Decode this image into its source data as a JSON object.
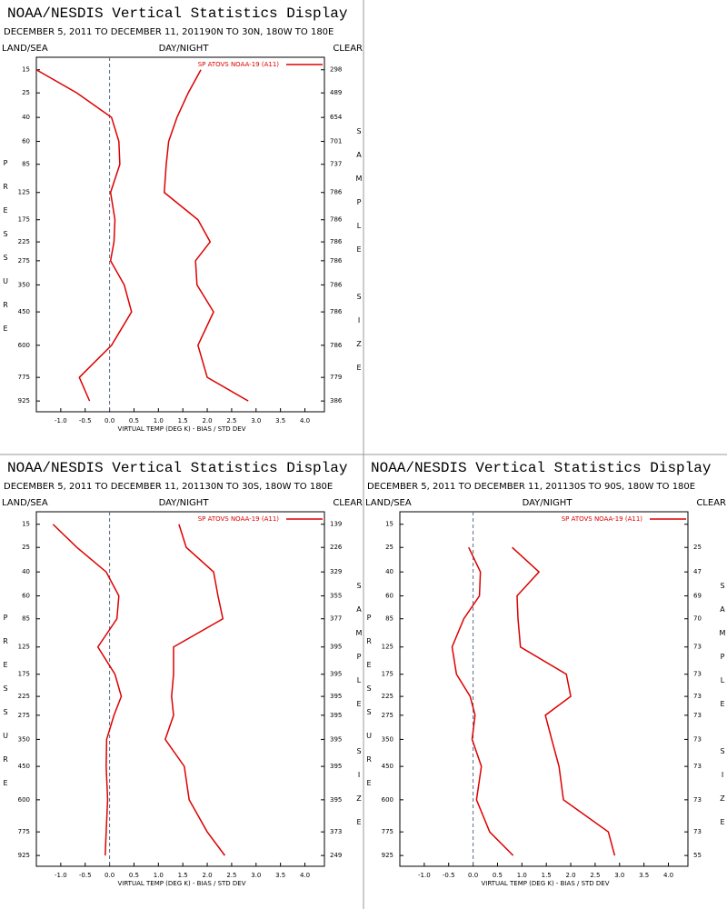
{
  "chart_data": [
    {
      "type": "line",
      "title": "NOAA/NESDIS Vertical Statistics Display",
      "subtitle": "DECEMBER 5, 2011 TO DECEMBER 11, 201190N TO 30N, 180W TO 180E",
      "left_label": "LAND/SEA",
      "center_label": "DAY/NIGHT",
      "right_label": "CLEAR",
      "y_label": "PRESSURE",
      "y2_label": "SAMPLE SIZE",
      "x_label": "VIRTUAL TEMP (DEG K) - BIAS / STD DEV",
      "xlim": [
        -1.5,
        4.4
      ],
      "xticks": [
        {
          "value": -1,
          "label": "-1.0"
        },
        {
          "value": -0.5,
          "label": "-0.5"
        },
        {
          "value": 0,
          "label": "0.0"
        },
        {
          "value": 0.5,
          "label": "0.5"
        },
        {
          "value": 1,
          "label": "1.0"
        },
        {
          "value": 1.5,
          "label": "1.5"
        },
        {
          "value": 2,
          "label": "2.0"
        },
        {
          "value": 2.5,
          "label": "2.5"
        },
        {
          "value": 3,
          "label": "3.0"
        },
        {
          "value": 3.5,
          "label": "3.5"
        },
        {
          "value": 4,
          "label": "4.0"
        }
      ],
      "ylim": [
        11,
        1000
      ],
      "yticks": [
        15,
        25,
        40,
        60,
        85,
        125,
        175,
        225,
        275,
        350,
        450,
        600,
        775,
        925
      ],
      "sample_size": [
        298,
        489,
        654,
        701,
        737,
        786,
        786,
        786,
        786,
        786,
        786,
        786,
        779,
        386
      ],
      "series": [
        {
          "name": "SP ATOVS NOAA-19 (A11)",
          "color": "#dd0000",
          "bias": [
            -1.5,
            -0.67,
            0.04,
            0.19,
            0.21,
            0.02,
            0.11,
            0.09,
            0.02,
            0.3,
            0.45,
            0.04,
            -0.62,
            -0.41
          ],
          "std_dev": [
            1.87,
            1.61,
            1.38,
            1.21,
            1.16,
            1.12,
            1.81,
            2.06,
            1.76,
            1.79,
            2.13,
            1.81,
            2.0,
            2.84
          ]
        }
      ]
    },
    {
      "type": "line",
      "title": "NOAA/NESDIS Vertical Statistics Display",
      "subtitle": "DECEMBER 5, 2011 TO DECEMBER 11, 201130N TO 30S, 180W TO 180E",
      "left_label": "LAND/SEA",
      "center_label": "DAY/NIGHT",
      "right_label": "CLEAR",
      "y_label": "PRESSURE",
      "y2_label": "SAMPLE SIZE",
      "x_label": "VIRTUAL TEMP (DEG K) - BIAS / STD DEV",
      "xlim": [
        -1.5,
        4.4
      ],
      "xticks": [
        {
          "value": -1,
          "label": "-1.0"
        },
        {
          "value": -0.5,
          "label": "-0.5"
        },
        {
          "value": 0,
          "label": "0.0"
        },
        {
          "value": 0.5,
          "label": "0.5"
        },
        {
          "value": 1,
          "label": "1.0"
        },
        {
          "value": 1.5,
          "label": "1.5"
        },
        {
          "value": 2,
          "label": "2.0"
        },
        {
          "value": 2.5,
          "label": "2.5"
        },
        {
          "value": 3,
          "label": "3.0"
        },
        {
          "value": 3.5,
          "label": "3.5"
        },
        {
          "value": 4,
          "label": "4.0"
        }
      ],
      "ylim": [
        11,
        1000
      ],
      "yticks": [
        15,
        25,
        40,
        60,
        85,
        125,
        175,
        225,
        275,
        350,
        450,
        600,
        775,
        925
      ],
      "sample_size": [
        139,
        226,
        329,
        355,
        377,
        395,
        395,
        395,
        395,
        395,
        395,
        395,
        373,
        249
      ],
      "series": [
        {
          "name": "SP ATOVS NOAA-19 (A11)",
          "color": "#dd0000",
          "bias": [
            -1.16,
            -0.67,
            -0.07,
            0.19,
            0.15,
            -0.24,
            0.11,
            0.24,
            0.09,
            -0.06,
            -0.07,
            -0.04,
            -0.07,
            -0.09
          ],
          "std_dev": [
            1.42,
            1.57,
            2.13,
            2.22,
            2.32,
            1.31,
            1.31,
            1.27,
            1.31,
            1.14,
            1.53,
            1.63,
            2.0,
            2.36
          ]
        }
      ]
    },
    {
      "type": "line",
      "title": "NOAA/NESDIS Vertical Statistics Display",
      "subtitle": "DECEMBER 5, 2011 TO DECEMBER 11, 201130S TO 90S, 180W TO 180E",
      "left_label": "LAND/SEA",
      "center_label": "DAY/NIGHT",
      "right_label": "CLEAR",
      "y_label": "PRESSURE",
      "y2_label": "SAMPLE SIZE",
      "x_label": "VIRTUAL TEMP (DEG K) - BIAS / STD DEV",
      "xlim": [
        -1.5,
        4.4
      ],
      "xticks": [
        {
          "value": -1,
          "label": "-1.0"
        },
        {
          "value": -0.5,
          "label": "-0.5"
        },
        {
          "value": 0,
          "label": "0.0"
        },
        {
          "value": 0.5,
          "label": "0.5"
        },
        {
          "value": 1,
          "label": "1.0"
        },
        {
          "value": 1.5,
          "label": "1.5"
        },
        {
          "value": 2,
          "label": "2.0"
        },
        {
          "value": 2.5,
          "label": "2.5"
        },
        {
          "value": 3,
          "label": "3.0"
        },
        {
          "value": 3.5,
          "label": "3.5"
        },
        {
          "value": 4,
          "label": "4.0"
        }
      ],
      "ylim": [
        11,
        1000
      ],
      "yticks": [
        15,
        25,
        40,
        60,
        85,
        125,
        175,
        225,
        275,
        350,
        450,
        600,
        775,
        925
      ],
      "sample_size": [
        null,
        25,
        47,
        69,
        70,
        73,
        73,
        73,
        73,
        73,
        73,
        73,
        73,
        55
      ],
      "series": [
        {
          "name": "SP ATOVS NOAA-19 (A11)",
          "color": "#dd0000",
          "bias": [
            null,
            -0.09,
            0.15,
            0.13,
            -0.19,
            -0.43,
            -0.34,
            -0.06,
            0.04,
            -0.02,
            0.17,
            0.07,
            0.34,
            0.82
          ],
          "std_dev": [
            null,
            0.8,
            1.35,
            0.9,
            0.92,
            0.97,
            1.91,
            2.0,
            1.48,
            1.61,
            1.76,
            1.85,
            2.77,
            2.9
          ]
        }
      ]
    }
  ]
}
